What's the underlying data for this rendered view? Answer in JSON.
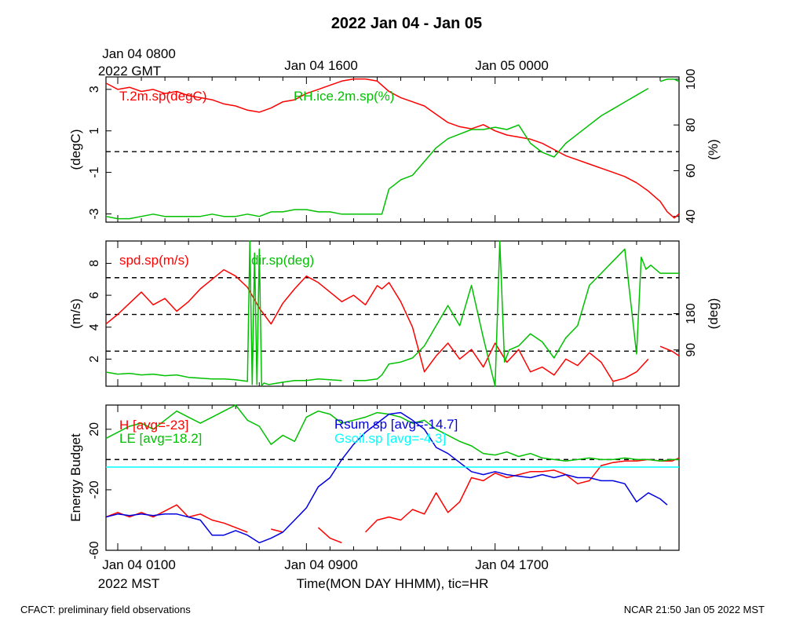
{
  "title": "2022 Jan 04 - Jan 05",
  "gmt_axis": {
    "first_label_line1": "Jan 04 0800",
    "first_label_line2": "2022 GMT",
    "labels": [
      "Jan 04 1600",
      "Jan 05 0000"
    ]
  },
  "mst_axis": {
    "labels": [
      "Jan 04 0100",
      "Jan 04 0900",
      "Jan 04 1700"
    ],
    "first_label_line2": "2022 MST",
    "xlabel": "Time(MON DAY HHMM), tic=HR"
  },
  "footer": {
    "left": "CFACT: preliminary field observations",
    "right": "NCAR 21:50 Jan 05 2022 MST"
  },
  "colors": {
    "red": "#ff0000",
    "green": "#00c000",
    "blue": "#0000e0",
    "cyan": "#00ffff"
  },
  "chart_data": [
    {
      "type": "line",
      "x_unit": "hours since Jan 04 0000 MST",
      "xlim": [
        0.5,
        24.8
      ],
      "ylabel": "(degC)",
      "ylim": [
        -3.4,
        3.6
      ],
      "yticks": [
        3,
        1,
        -1,
        -3
      ],
      "y2label": "(%)",
      "y2lim": [
        37.5,
        101
      ],
      "y2ticks": [
        100,
        80,
        60,
        40
      ],
      "hlines": [
        {
          "axis": "y",
          "value": 0
        }
      ],
      "series": [
        {
          "name": "T.2m.sp(degC)",
          "color": "red",
          "axis": "y",
          "x": [
            0.5,
            1,
            1.5,
            2,
            2.5,
            3,
            3.5,
            4,
            4.5,
            5,
            5.5,
            6,
            6.5,
            7,
            7.5,
            8,
            8.5,
            9,
            9.5,
            10,
            10.5,
            11,
            11.5,
            12,
            12.5,
            13,
            13.5,
            14,
            14.5,
            15,
            15.5,
            16,
            16.5,
            17,
            17.5,
            18,
            18.5,
            19,
            19.5,
            20,
            20.5,
            21,
            21.5,
            22,
            22.5,
            23,
            23.5,
            24,
            24.3,
            24.6,
            24.8
          ],
          "y": [
            3.3,
            3.0,
            3.1,
            2.9,
            3.0,
            2.8,
            2.9,
            2.7,
            2.6,
            2.5,
            2.3,
            2.2,
            2.0,
            1.9,
            2.1,
            2.4,
            2.5,
            2.8,
            3.0,
            3.2,
            3.4,
            3.5,
            3.5,
            3.4,
            2.9,
            2.6,
            2.4,
            2.2,
            1.8,
            1.4,
            1.2,
            1.1,
            1.3,
            1.0,
            0.8,
            0.7,
            0.6,
            0.4,
            0.1,
            -0.2,
            -0.4,
            -0.6,
            -0.8,
            -1.0,
            -1.2,
            -1.5,
            -1.9,
            -2.4,
            -2.9,
            -3.2,
            -3.0
          ]
        },
        {
          "name": "RH.ice.2m.sp(%)",
          "color": "green",
          "axis": "y2",
          "x": [
            0.5,
            1,
            1.5,
            2,
            2.5,
            3,
            3.5,
            4,
            4.5,
            5,
            5.5,
            6,
            6.5,
            7,
            7.5,
            8,
            8.5,
            9,
            9.5,
            10,
            10.5,
            11,
            11.5,
            12,
            12.2,
            12.5,
            13,
            13.5,
            14,
            14.5,
            15,
            15.5,
            16,
            16.5,
            17,
            17.5,
            18,
            18.5,
            19,
            19.5,
            20,
            20.5,
            21,
            21.5,
            22,
            22.5,
            23,
            23.5,
            24,
            24.3,
            24.6,
            24.8
          ],
          "y": [
            40,
            39,
            39,
            40,
            41,
            40,
            40,
            40,
            40,
            41,
            40,
            40,
            41,
            40,
            42,
            42,
            43,
            43,
            42,
            42,
            41,
            41,
            41,
            41,
            41,
            52,
            56,
            58,
            64,
            70,
            74,
            76,
            78,
            78,
            79,
            78,
            80,
            72,
            68,
            66,
            72,
            76,
            80,
            84,
            87,
            90,
            93,
            96,
            99,
            100,
            100,
            99
          ],
          "breaks": [
            24
          ]
        }
      ]
    },
    {
      "type": "line",
      "x_unit": "hours since Jan 04 0000 MST",
      "xlim": [
        0.5,
        24.8
      ],
      "ylabel": "(m/s)",
      "ylim": [
        0.3,
        9.4
      ],
      "yticks": [
        2,
        4,
        6,
        8
      ],
      "y2label": "(deg)",
      "y2lim": [
        0,
        360
      ],
      "y2ticks": [
        90,
        180
      ],
      "hlines": [
        {
          "axis": "y",
          "value": 7.1
        },
        {
          "axis": "y",
          "value": 4.8
        },
        {
          "axis": "y",
          "value": 2.5
        }
      ],
      "series": [
        {
          "name": "spd.sp(m/s)",
          "color": "red",
          "axis": "y",
          "x": [
            0.5,
            1,
            1.5,
            2,
            2.5,
            3,
            3.5,
            4,
            4.5,
            5,
            5.5,
            6,
            6.5,
            7,
            7.5,
            8,
            8.5,
            9,
            9.5,
            10,
            10.5,
            11,
            11.5,
            12,
            12.2,
            12.5,
            13,
            13.5,
            14,
            14.5,
            15,
            15.5,
            16,
            16.5,
            17,
            17.5,
            18,
            18.5,
            19,
            19.5,
            20,
            20.5,
            21,
            21.5,
            22,
            22.5,
            23,
            23.5,
            24,
            24.5,
            24.8
          ],
          "y": [
            4.2,
            4.8,
            5.5,
            6.2,
            5.4,
            5.8,
            5.0,
            5.6,
            6.4,
            7.0,
            7.6,
            7.2,
            6.5,
            5.2,
            4.2,
            5.5,
            6.4,
            7.2,
            6.8,
            6.2,
            5.6,
            6.0,
            5.4,
            6.6,
            6.4,
            6.8,
            5.6,
            4.0,
            1.2,
            2.2,
            3.0,
            2.0,
            2.6,
            1.5,
            3.0,
            1.8,
            2.6,
            1.2,
            1.5,
            1.0,
            2.0,
            1.6,
            2.4,
            1.8,
            0.6,
            0.8,
            1.2,
            2.0,
            2.8,
            2.5,
            2.2
          ],
          "breaks": [
            24
          ]
        },
        {
          "name": "dir.sp(deg)",
          "color": "green",
          "axis": "y2",
          "x": [
            0.5,
            1,
            1.5,
            2,
            2.5,
            3,
            3.5,
            4,
            4.5,
            5,
            5.5,
            6,
            6.5,
            6.6,
            6.7,
            6.8,
            6.9,
            7,
            7.1,
            7.2,
            7.4,
            7.6,
            8,
            8.5,
            9,
            9.5,
            10,
            10.5,
            11,
            11.5,
            12,
            12.2,
            12.5,
            13,
            13.5,
            14,
            14.5,
            15,
            15.5,
            16,
            16.5,
            17,
            17.2,
            17.4,
            17.6,
            18,
            18.5,
            19,
            19.5,
            20,
            20.5,
            21,
            21.5,
            22,
            22.5,
            23,
            23.2,
            23.4,
            23.6,
            24,
            24.5,
            24.8
          ],
          "y": [
            35,
            30,
            32,
            28,
            30,
            26,
            28,
            22,
            20,
            18,
            18,
            16,
            12,
            360,
            4,
            330,
            4,
            340,
            2,
            8,
            4,
            6,
            10,
            14,
            14,
            18,
            16,
            14,
            14,
            14,
            18,
            28,
            55,
            60,
            70,
            100,
            150,
            200,
            150,
            250,
            120,
            0,
            360,
            60,
            90,
            100,
            130,
            110,
            70,
            120,
            150,
            250,
            280,
            310,
            340,
            80,
            320,
            290,
            300,
            280,
            280,
            280
          ],
          "breaks": [
            11
          ]
        }
      ]
    },
    {
      "type": "line",
      "x_unit": "hours since Jan 04 0000 MST",
      "xlim": [
        0.5,
        24.8
      ],
      "ylabel": "Energy Budget",
      "ylim": [
        -60,
        36
      ],
      "yticks": [
        20,
        -20,
        -60
      ],
      "hlines": [
        {
          "axis": "y",
          "value": 0
        }
      ],
      "series": [
        {
          "name": "H",
          "legend": "H [avg=-23]",
          "color": "red",
          "x": [
            0.5,
            1,
            1.5,
            2,
            2.5,
            3,
            3.5,
            4,
            4.5,
            5,
            5.5,
            6,
            6.5,
            7,
            7.5,
            8,
            8.5,
            9,
            9.5,
            10,
            10.5,
            11,
            11.5,
            12,
            12.5,
            13,
            13.5,
            14,
            14.5,
            15,
            15.5,
            16,
            16.5,
            17,
            17.5,
            18,
            18.5,
            19,
            19.5,
            20,
            20.5,
            21,
            21.5,
            22,
            22.5,
            23,
            23.5,
            24,
            24.5,
            24.8
          ],
          "y": [
            -38,
            -35,
            -38,
            -35,
            -38,
            -34,
            -30,
            -38,
            -36,
            -40,
            -42,
            -45,
            -48,
            -50,
            -46,
            -48,
            -40,
            -38,
            -45,
            -52,
            -55,
            -52,
            -48,
            -40,
            -38,
            -40,
            -33,
            -36,
            -22,
            -35,
            -28,
            -12,
            -14,
            -9,
            -12,
            -10,
            -8,
            -8,
            -7,
            -10,
            -16,
            -14,
            -4,
            -2,
            -1,
            -1,
            0,
            -1,
            -1,
            1
          ],
          "gaps": [
            [
              6.5,
              7.5
            ],
            [
              8,
              9.5
            ],
            [
              10.5,
              11.5
            ]
          ]
        },
        {
          "name": "LE",
          "legend": "LE [avg=18.2]",
          "color": "green",
          "x": [
            0.5,
            1,
            1.5,
            2,
            2.5,
            3,
            3.5,
            4,
            4.5,
            5,
            5.5,
            6,
            6.5,
            7,
            7.5,
            8,
            8.5,
            9,
            9.5,
            10,
            10.5,
            11,
            11.5,
            12,
            12.5,
            13,
            13.5,
            14,
            14.5,
            15,
            15.5,
            16,
            16.5,
            17,
            17.5,
            18,
            18.5,
            19,
            19.5,
            20,
            20.5,
            21,
            21.5,
            22,
            22.5,
            23,
            23.5,
            24,
            24.5,
            24.8
          ],
          "y": [
            14,
            18,
            22,
            24,
            20,
            26,
            32,
            28,
            24,
            28,
            32,
            36,
            26,
            22,
            10,
            16,
            12,
            28,
            32,
            30,
            24,
            26,
            28,
            31,
            30,
            28,
            24,
            26,
            20,
            16,
            12,
            9,
            4,
            3,
            5,
            2,
            4,
            1,
            0,
            -1,
            0,
            1,
            0,
            0,
            1,
            0,
            0,
            -1,
            0,
            0
          ]
        },
        {
          "name": "Rsum.sp",
          "legend": "Rsum.sp [avg=-14.7]",
          "color": "blue",
          "x": [
            0.5,
            1,
            1.5,
            2,
            2.5,
            3,
            3.5,
            4,
            4.5,
            5,
            5.5,
            6,
            6.5,
            7,
            7.5,
            8,
            8.5,
            9,
            9.5,
            10,
            10.5,
            11,
            11.5,
            12,
            12.5,
            13,
            13.5,
            14,
            14.5,
            15,
            15.5,
            16,
            16.5,
            17,
            17.5,
            18,
            18.5,
            19,
            19.5,
            20,
            20.5,
            21,
            21.5,
            22,
            22.5,
            23,
            23.5,
            24,
            24.3
          ],
          "y": [
            -38,
            -36,
            -37,
            -36,
            -37,
            -36,
            -36,
            -38,
            -40,
            -50,
            -50,
            -47,
            -50,
            -55,
            -52,
            -48,
            -40,
            -32,
            -18,
            -12,
            0,
            10,
            18,
            24,
            30,
            31,
            26,
            20,
            8,
            4,
            -2,
            -8,
            -10,
            -8,
            -10,
            -11,
            -12,
            -10,
            -12,
            -10,
            -12,
            -12,
            -14,
            -14,
            -16,
            -28,
            -22,
            -26,
            -30
          ]
        },
        {
          "name": "Gsoil.sp",
          "legend": "Gsoil.sp [avg=-4.3]",
          "color": "cyan",
          "x": [
            0.5,
            24.8
          ],
          "y": [
            -5,
            -5
          ]
        }
      ]
    }
  ]
}
